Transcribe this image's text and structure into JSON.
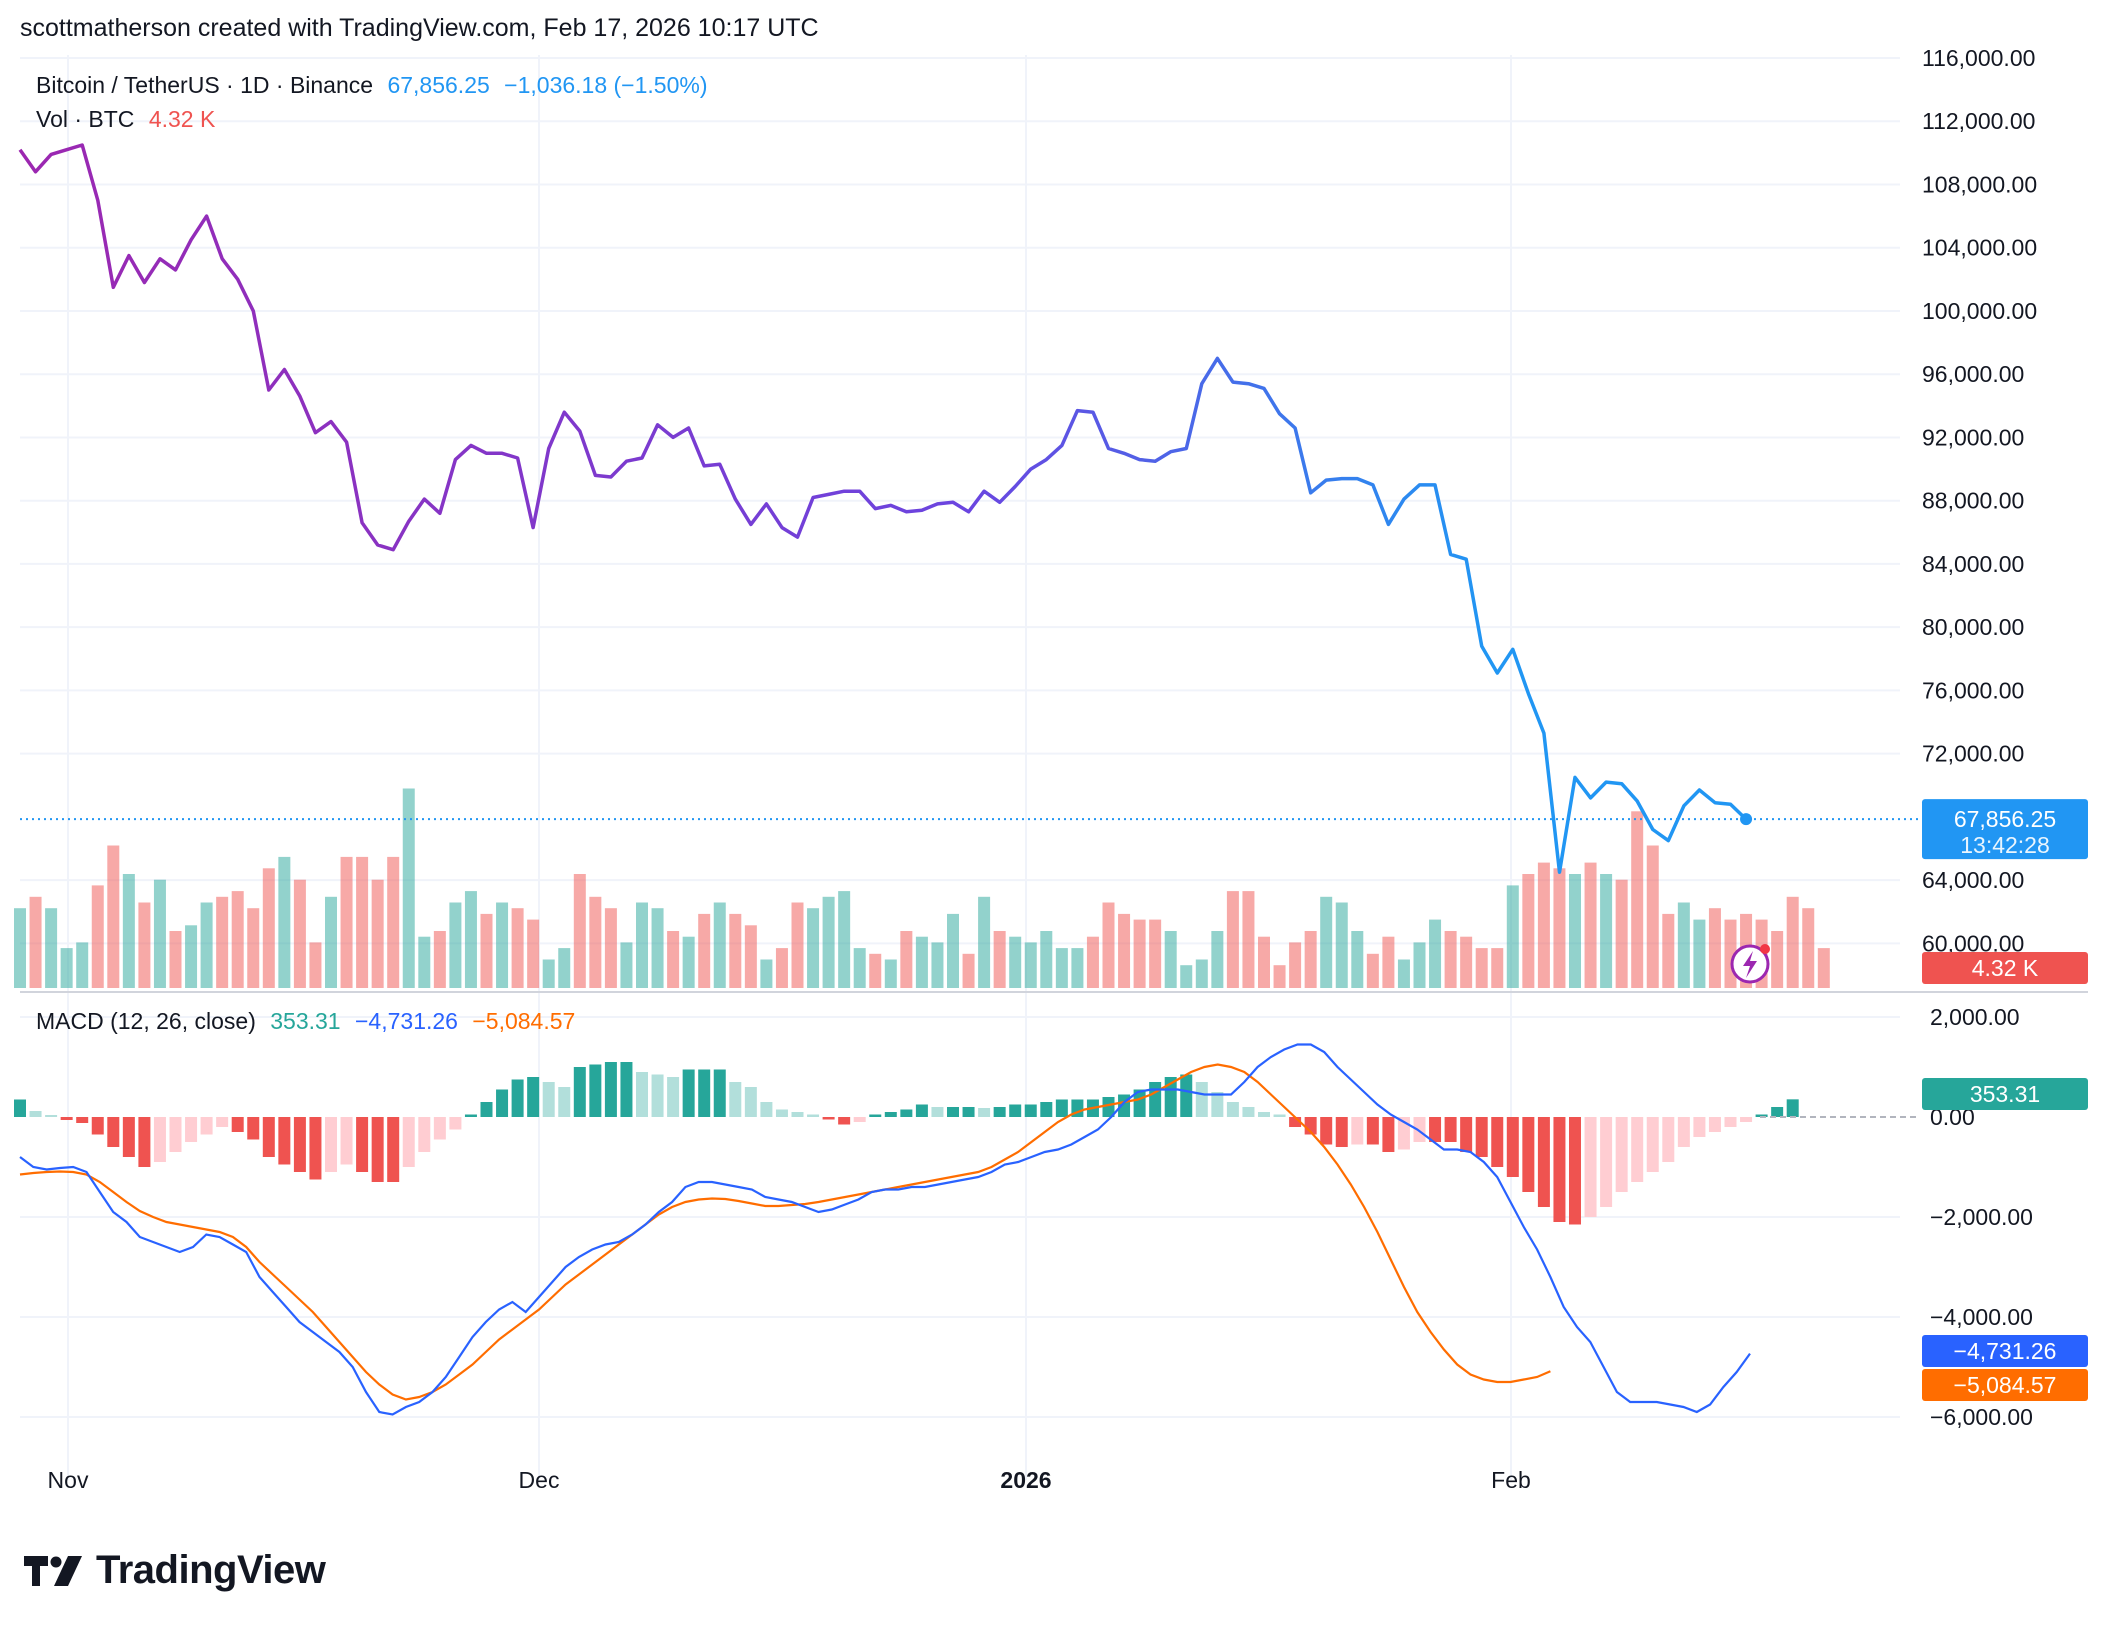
{
  "header": {
    "attribution": "scottmatherson created with TradingView.com, Feb 17, 2026 10:17 UTC"
  },
  "legend": {
    "symbol": "Bitcoin / TetherUS · 1D · Binance",
    "last_price": "67,856.25",
    "change": "−1,036.18 (−1.50%)",
    "vol_label": "Vol · BTC",
    "vol_value": "4.32 K",
    "macd_label": "MACD (12, 26, close)",
    "macd_hist": "353.31",
    "macd_line": "−4,731.26",
    "macd_signal": "−5,084.57"
  },
  "price_axis": {
    "ticks": [
      "116,000.00",
      "112,000.00",
      "108,000.00",
      "104,000.00",
      "100,000.00",
      "96,000.00",
      "92,000.00",
      "88,000.00",
      "84,000.00",
      "80,000.00",
      "76,000.00",
      "72,000.00",
      "64,000.00",
      "60,000.00"
    ],
    "last_price_tag": "67,856.25",
    "countdown_tag": "13:42:28",
    "volume_tag": "4.32 K"
  },
  "macd_axis": {
    "ticks": [
      "2,000.00",
      "0.00",
      "−2,000.00",
      "−4,000.00",
      "−6,000.00"
    ],
    "hist_tag": "353.31",
    "macd_tag": "−4,731.26",
    "signal_tag": "−5,084.57"
  },
  "time_axis": {
    "labels": [
      "Nov",
      "Dec",
      "2026",
      "Feb"
    ]
  },
  "footer": {
    "brand": "TradingView"
  },
  "colors": {
    "price_purple": "#9c27b0",
    "price_blue": "#2196f3",
    "up": "#26a69a",
    "down": "#ef5350",
    "macd_line": "#2962ff",
    "signal_line": "#ff6d00",
    "grid": "#f0f3fa"
  },
  "chart_data": [
    {
      "type": "line",
      "title": "Bitcoin / TetherUS · 1D · Binance",
      "x_start": "2025-10-28",
      "x_end": "2026-02-17",
      "ylim": [
        58000,
        116000
      ],
      "series": [
        {
          "values": [
            110200,
            108800,
            109900,
            110200,
            110500,
            107000,
            101500,
            103500,
            101800,
            103300,
            102600,
            104500,
            106000,
            103300,
            102000,
            100000,
            95000,
            96300,
            94600,
            92300,
            93000,
            91700,
            86600,
            85200,
            84900,
            86700,
            88100,
            87200,
            90600,
            91500,
            91000,
            91000,
            90700,
            86300,
            91300,
            93600,
            92400,
            89600,
            89500,
            90500,
            90700,
            92800,
            92000,
            92600,
            90200,
            90300,
            88100,
            86500,
            87800,
            86300,
            85700,
            88200,
            88400,
            88600,
            88600,
            87500,
            87700,
            87300,
            87400,
            87800,
            87900,
            87300,
            88600,
            87900,
            88900,
            90000,
            90600,
            91500,
            93700,
            93600,
            91300,
            91000,
            90600,
            90500,
            91100,
            91300,
            95400,
            97000,
            95500,
            95400,
            95100,
            93500,
            92600,
            88500,
            89300,
            89400,
            89400,
            89000,
            86500,
            88100,
            89000,
            89000,
            84600,
            84300,
            78800,
            77100,
            78600,
            75800,
            73300,
            64500,
            70500,
            69200,
            70200,
            70100,
            69000,
            67200,
            66500,
            68700,
            69700,
            68900,
            68800,
            67856
          ]
        }
      ]
    },
    {
      "type": "bar",
      "title": "Vol · BTC",
      "values": [
        14,
        16,
        14,
        7,
        8,
        18,
        25,
        20,
        15,
        19,
        10,
        11,
        15,
        16,
        17,
        14,
        21,
        23,
        19,
        8,
        16,
        23,
        23,
        19,
        23,
        35,
        9,
        10,
        15,
        17,
        13,
        15,
        14,
        12,
        5,
        7,
        20,
        16,
        14,
        8,
        15,
        14,
        10,
        9,
        13,
        15,
        13,
        11,
        5,
        7,
        15,
        14,
        16,
        17,
        7,
        6,
        5,
        10,
        9,
        8,
        13,
        6,
        16,
        10,
        9,
        8,
        10,
        7,
        7,
        9,
        15,
        13,
        12,
        12,
        10,
        4,
        5,
        10,
        17,
        17,
        9,
        4,
        8,
        10,
        16,
        15,
        10,
        6,
        9,
        5,
        8,
        12,
        10,
        9,
        7,
        7,
        18,
        20,
        22,
        21,
        20,
        22,
        20,
        19,
        31,
        25,
        13,
        15,
        12,
        14,
        12,
        13,
        12,
        10,
        16,
        14,
        7
      ]
    },
    {
      "type": "line",
      "title": "MACD (12, 26, close)",
      "ylim": [
        -6500,
        2200
      ],
      "series": [
        {
          "name": "MACD",
          "values": [
            -800,
            -1000,
            -1050,
            -1020,
            -1000,
            -1100,
            -1500,
            -1900,
            -2100,
            -2400,
            -2500,
            -2600,
            -2700,
            -2600,
            -2350,
            -2400,
            -2550,
            -2700,
            -3200,
            -3500,
            -3800,
            -4100,
            -4300,
            -4500,
            -4700,
            -5000,
            -5500,
            -5900,
            -5950,
            -5800,
            -5700,
            -5500,
            -5200,
            -4800,
            -4400,
            -4100,
            -3850,
            -3700,
            -3900,
            -3600,
            -3300,
            -3000,
            -2800,
            -2650,
            -2550,
            -2500,
            -2350,
            -2150,
            -1900,
            -1700,
            -1400,
            -1300,
            -1300,
            -1350,
            -1400,
            -1450,
            -1600,
            -1650,
            -1700,
            -1800,
            -1900,
            -1850,
            -1750,
            -1650,
            -1500,
            -1450,
            -1450,
            -1400,
            -1400,
            -1350,
            -1300,
            -1250,
            -1200,
            -1100,
            -950,
            -900,
            -800,
            -700,
            -650,
            -550,
            -400,
            -250,
            0,
            300,
            500,
            550,
            550,
            550,
            500,
            450,
            450,
            450,
            700,
            1000,
            1200,
            1350,
            1450,
            1450,
            1300,
            1000,
            750,
            500,
            250,
            50,
            -100,
            -250,
            -450,
            -650,
            -650,
            -700,
            -900,
            -1200,
            -1700,
            -2200,
            -2650,
            -3200,
            -3800,
            -4200,
            -4500,
            -5000,
            -5500,
            -5700,
            -5700,
            -5700,
            -5750,
            -5800,
            -5900,
            -5750,
            -5400,
            -5100,
            -4731.26
          ]
        },
        {
          "name": "Signal",
          "values": [
            -1150,
            -1120,
            -1100,
            -1090,
            -1100,
            -1150,
            -1300,
            -1500,
            -1700,
            -1880,
            -2000,
            -2100,
            -2150,
            -2200,
            -2250,
            -2300,
            -2400,
            -2600,
            -2900,
            -3150,
            -3400,
            -3650,
            -3900,
            -4200,
            -4500,
            -4800,
            -5100,
            -5350,
            -5550,
            -5650,
            -5600,
            -5500,
            -5350,
            -5150,
            -4950,
            -4700,
            -4450,
            -4250,
            -4050,
            -3850,
            -3600,
            -3350,
            -3150,
            -2950,
            -2750,
            -2550,
            -2350,
            -2150,
            -1950,
            -1800,
            -1700,
            -1650,
            -1630,
            -1640,
            -1680,
            -1730,
            -1780,
            -1780,
            -1760,
            -1740,
            -1700,
            -1650,
            -1600,
            -1550,
            -1500,
            -1450,
            -1400,
            -1350,
            -1300,
            -1250,
            -1200,
            -1150,
            -1100,
            -1000,
            -850,
            -700,
            -500,
            -300,
            -100,
            50,
            150,
            200,
            250,
            300,
            350,
            450,
            600,
            750,
            900,
            1000,
            1050,
            1000,
            900,
            700,
            450,
            200,
            -50,
            -300,
            -600,
            -950,
            -1350,
            -1800,
            -2300,
            -2850,
            -3400,
            -3900,
            -4300,
            -4650,
            -4950,
            -5150,
            -5250,
            -5300,
            -5300,
            -5250,
            -5200,
            -5084.57
          ]
        }
      ]
    },
    {
      "type": "bar",
      "title": "MACD histogram",
      "values": [
        350,
        120,
        40,
        -60,
        -120,
        -350,
        -600,
        -800,
        -1000,
        -900,
        -700,
        -500,
        -350,
        -200,
        -300,
        -450,
        -800,
        -950,
        -1100,
        -1250,
        -1100,
        -950,
        -1100,
        -1300,
        -1300,
        -1000,
        -700,
        -450,
        -250,
        50,
        300,
        550,
        750,
        800,
        700,
        600,
        1000,
        1050,
        1100,
        1100,
        900,
        850,
        800,
        950,
        950,
        950,
        700,
        600,
        300,
        150,
        100,
        50,
        -50,
        -150,
        -100,
        50,
        100,
        150,
        250,
        200,
        200,
        200,
        180,
        200,
        250,
        250,
        300,
        350,
        350,
        350,
        400,
        450,
        550,
        700,
        800,
        850,
        700,
        500,
        300,
        200,
        100,
        50,
        -200,
        -350,
        -550,
        -600,
        -550,
        -550,
        -700,
        -650,
        -500,
        -500,
        -500,
        -700,
        -800,
        -1000,
        -1200,
        -1500,
        -1800,
        -2100,
        -2150,
        -2000,
        -1800,
        -1500,
        -1300,
        -1100,
        -900,
        -600,
        -400,
        -300,
        -200,
        -100,
        50,
        200,
        353.31
      ]
    }
  ]
}
